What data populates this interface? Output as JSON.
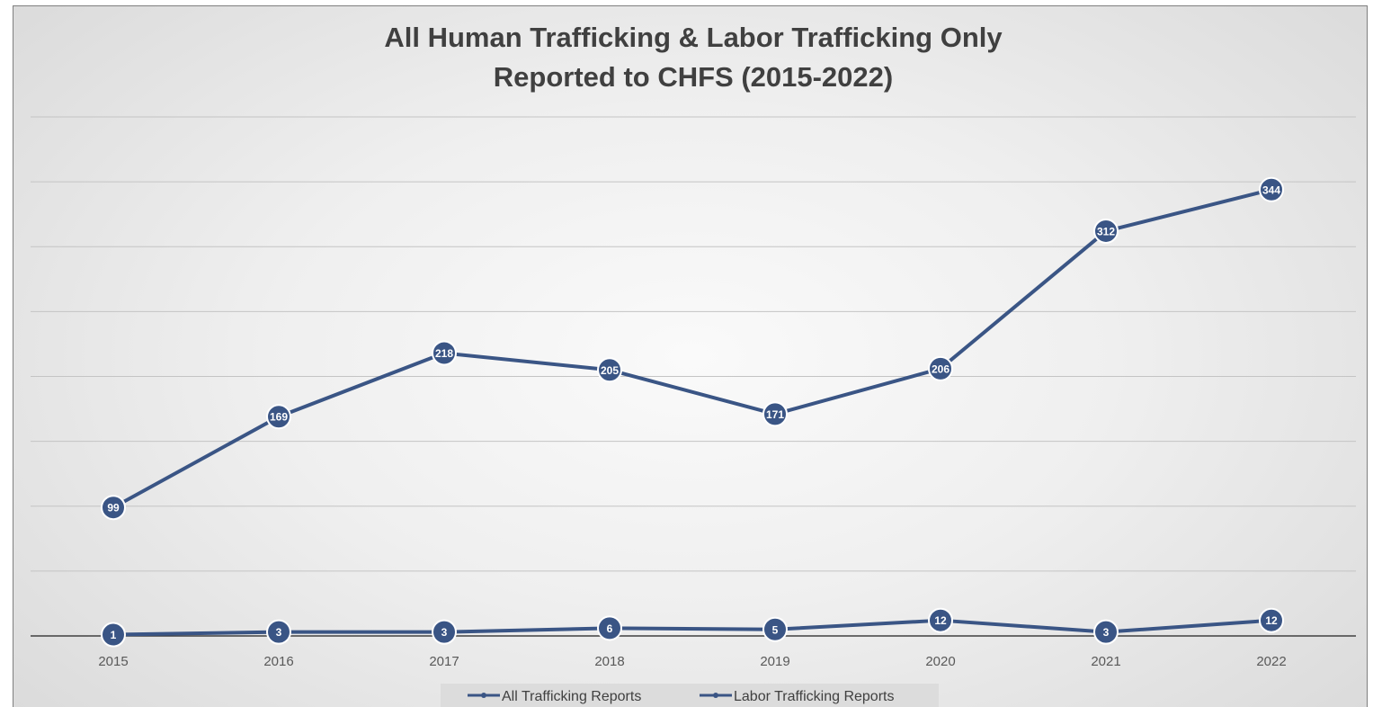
{
  "chart_data": {
    "type": "line",
    "title": [
      "All Human Trafficking & Labor Trafficking Only",
      "Reported to CHFS (2015-2022)"
    ],
    "x": [
      "2015",
      "2016",
      "2017",
      "2018",
      "2019",
      "2020",
      "2021",
      "2022"
    ],
    "ylim": [
      0,
      400
    ],
    "grid": true,
    "legend_position": "bottom",
    "series": [
      {
        "name": "All Trafficking Reports",
        "values": [
          99,
          169,
          218,
          205,
          171,
          206,
          312,
          344
        ],
        "labels": [
          "99",
          "169",
          "218",
          "205",
          "171",
          "206",
          "312",
          "344"
        ],
        "color": "#3a5585"
      },
      {
        "name": "Labor Trafficking Reports",
        "values": [
          1,
          3,
          3,
          6,
          5,
          12,
          3,
          12
        ],
        "labels": [
          "1",
          "3",
          "3",
          "6",
          "5",
          "12",
          "3",
          "12"
        ],
        "color": "#3a5585"
      }
    ]
  }
}
